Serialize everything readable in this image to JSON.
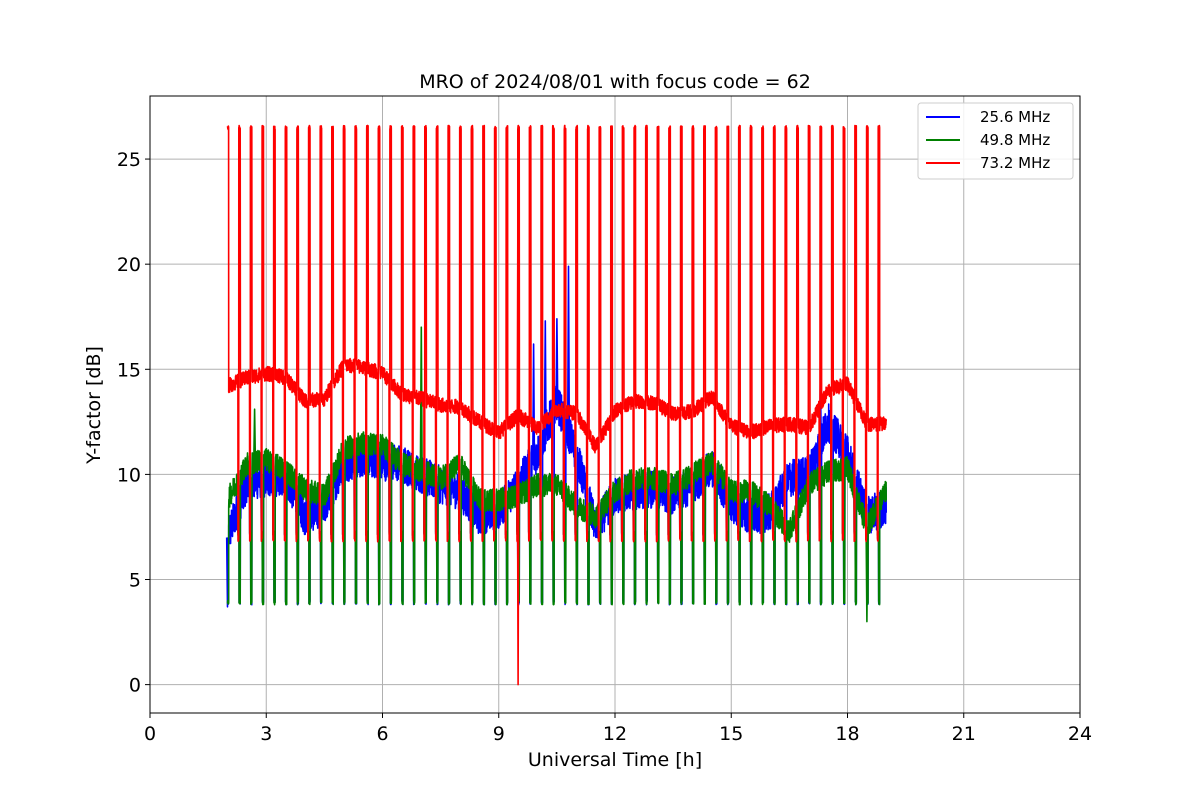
{
  "chart_data": {
    "type": "line",
    "title": "MRO of 2024/08/01 with focus code = 62",
    "xlabel": "Universal Time [h]",
    "ylabel": "Y-factor [dB]",
    "xlim": [
      0,
      24
    ],
    "ylim": [
      -1.35,
      28
    ],
    "xticks": [
      0,
      3,
      6,
      9,
      12,
      15,
      18,
      21,
      24
    ],
    "yticks": [
      0,
      5,
      10,
      15,
      20,
      25
    ],
    "grid": true,
    "legend": "top-right",
    "calibration": {
      "start_h": 2.0,
      "period_h": 0.3,
      "count": 57
    },
    "series": [
      {
        "name": "25.6 MHz",
        "color": "#0000ff",
        "x": [
          2.0,
          2.5,
          3.0,
          3.5,
          4.0,
          4.5,
          5.0,
          5.5,
          6.0,
          6.5,
          7.0,
          7.5,
          8.0,
          8.5,
          9.0,
          9.5,
          10.0,
          10.5,
          11.0,
          11.5,
          12.0,
          12.5,
          13.0,
          13.5,
          14.0,
          14.5,
          15.0,
          15.5,
          16.0,
          16.5,
          17.0,
          17.5,
          18.0,
          18.5,
          19.0
        ],
        "y": [
          7.0,
          9.6,
          9.8,
          9.9,
          8.0,
          8.5,
          10.5,
          10.8,
          10.6,
          10.5,
          10.0,
          9.5,
          9.2,
          8.0,
          8.3,
          9.5,
          11.0,
          13.5,
          11.0,
          7.5,
          9.0,
          9.2,
          9.3,
          9.0,
          9.5,
          10.3,
          8.6,
          8.0,
          8.2,
          9.8,
          10.0,
          12.5,
          11.0,
          8.0,
          8.5
        ],
        "dips": [
          {
            "x": 2.0,
            "y": 3.7
          },
          {
            "x": 9.5,
            "y": 3.8
          }
        ],
        "spikes": [
          {
            "x": 9.9,
            "y": 16.2
          },
          {
            "x": 10.2,
            "y": 17.3
          },
          {
            "x": 10.5,
            "y": 17.4
          },
          {
            "x": 10.8,
            "y": 19.9
          },
          {
            "x": 17.3,
            "y": 14.7
          }
        ]
      },
      {
        "name": "49.8 MHz",
        "color": "#008000",
        "x": [
          2.0,
          2.5,
          3.0,
          3.5,
          4.0,
          4.5,
          5.0,
          5.5,
          6.0,
          6.5,
          7.0,
          7.5,
          8.0,
          8.5,
          9.0,
          9.5,
          10.0,
          10.5,
          11.0,
          11.5,
          12.0,
          12.5,
          13.0,
          13.5,
          14.0,
          14.5,
          15.0,
          15.5,
          16.0,
          16.5,
          17.0,
          17.5,
          18.0,
          18.5,
          19.0
        ],
        "y": [
          8.8,
          10.5,
          10.7,
          10.2,
          9.3,
          9.0,
          11.2,
          11.5,
          11.4,
          10.5,
          10.2,
          9.8,
          10.5,
          8.8,
          8.8,
          9.0,
          9.5,
          9.5,
          8.5,
          8.0,
          9.2,
          9.8,
          9.8,
          9.5,
          10.0,
          10.6,
          9.2,
          9.2,
          8.5,
          7.3,
          9.5,
          10.1,
          10.3,
          7.5,
          9.3
        ],
        "dips": [
          {
            "x": 18.5,
            "y": 3.0
          }
        ],
        "spikes": [
          {
            "x": 2.7,
            "y": 13.1
          },
          {
            "x": 7.0,
            "y": 17.0
          }
        ]
      },
      {
        "name": "73.2 MHz",
        "color": "#ff0000",
        "x": [
          2.0,
          2.5,
          3.0,
          3.5,
          4.0,
          4.5,
          5.0,
          5.5,
          6.0,
          6.5,
          7.0,
          7.5,
          8.0,
          8.5,
          9.0,
          9.5,
          10.0,
          10.5,
          11.0,
          11.5,
          12.0,
          12.5,
          13.0,
          13.5,
          14.0,
          14.5,
          15.0,
          15.5,
          16.0,
          16.5,
          17.0,
          17.5,
          18.0,
          18.5,
          19.0
        ],
        "y": [
          14.2,
          14.6,
          14.8,
          14.6,
          13.5,
          13.6,
          15.2,
          15.1,
          14.8,
          13.8,
          13.6,
          13.3,
          13.2,
          12.5,
          12.0,
          12.8,
          12.2,
          13.1,
          12.9,
          11.3,
          13.0,
          13.5,
          13.4,
          12.9,
          13.0,
          13.7,
          12.3,
          12.0,
          12.3,
          12.4,
          12.2,
          14.0,
          14.3,
          12.4,
          12.4
        ],
        "dips": [
          {
            "x": 9.5,
            "y": 0.0
          }
        ],
        "spikes": []
      }
    ]
  }
}
